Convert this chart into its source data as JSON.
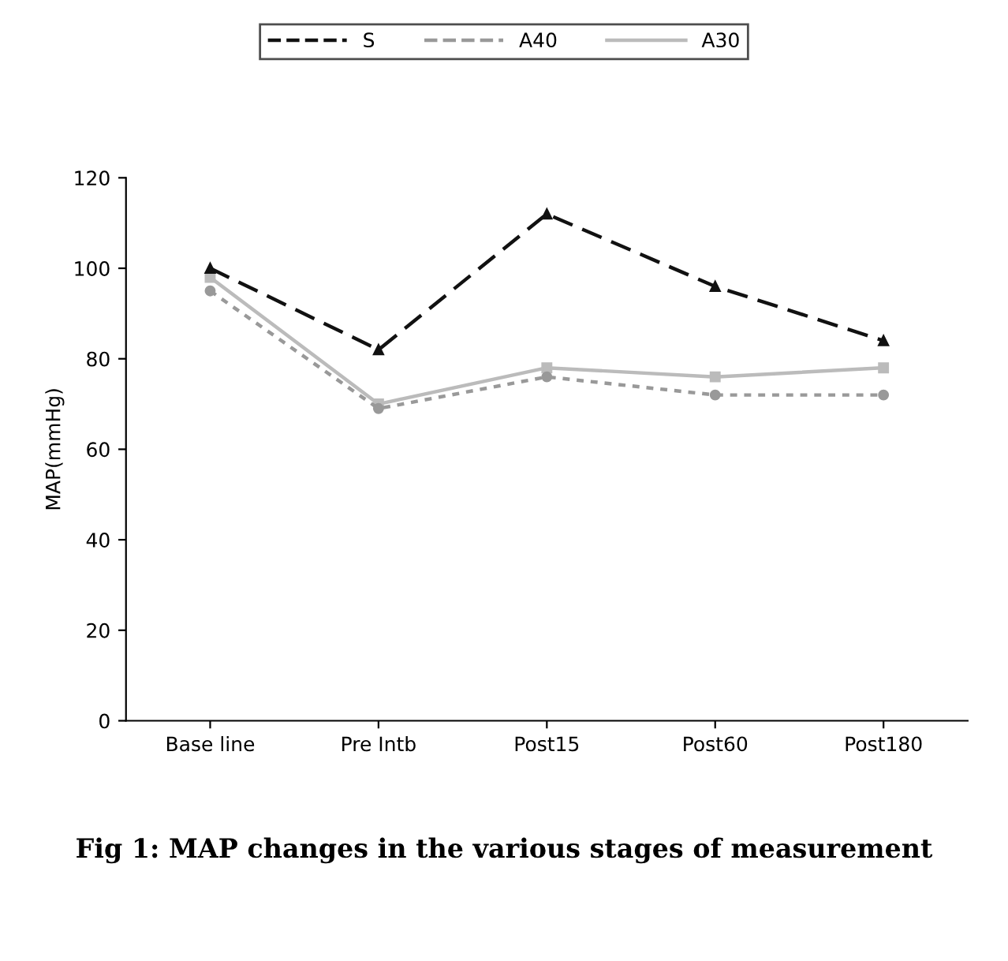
{
  "chart_data": {
    "type": "line",
    "title": "Fig 1: MAP changes in the various stages of measurement",
    "ylabel": "MAP(mmHg)",
    "categories": [
      "Base line",
      "Pre Intb",
      "Post15",
      "Post60",
      "Post180"
    ],
    "series": [
      {
        "name": "S",
        "color": "#111111",
        "values": [
          100,
          82,
          112,
          96,
          84
        ],
        "line_style": "dashed",
        "marker": "triangle"
      },
      {
        "name": "A40",
        "color": "#999999",
        "values": [
          95,
          69,
          76,
          72,
          72
        ],
        "line_style": "dotted",
        "marker": "circle"
      },
      {
        "name": "A30",
        "color": "#bbbbbb",
        "values": [
          98,
          70,
          78,
          76,
          78
        ],
        "line_style": "solid",
        "marker": "square"
      }
    ],
    "ylim": [
      0,
      120
    ],
    "yticks": [
      0,
      20,
      40,
      60,
      80,
      100,
      120
    ],
    "grid": false,
    "legend": "top"
  }
}
